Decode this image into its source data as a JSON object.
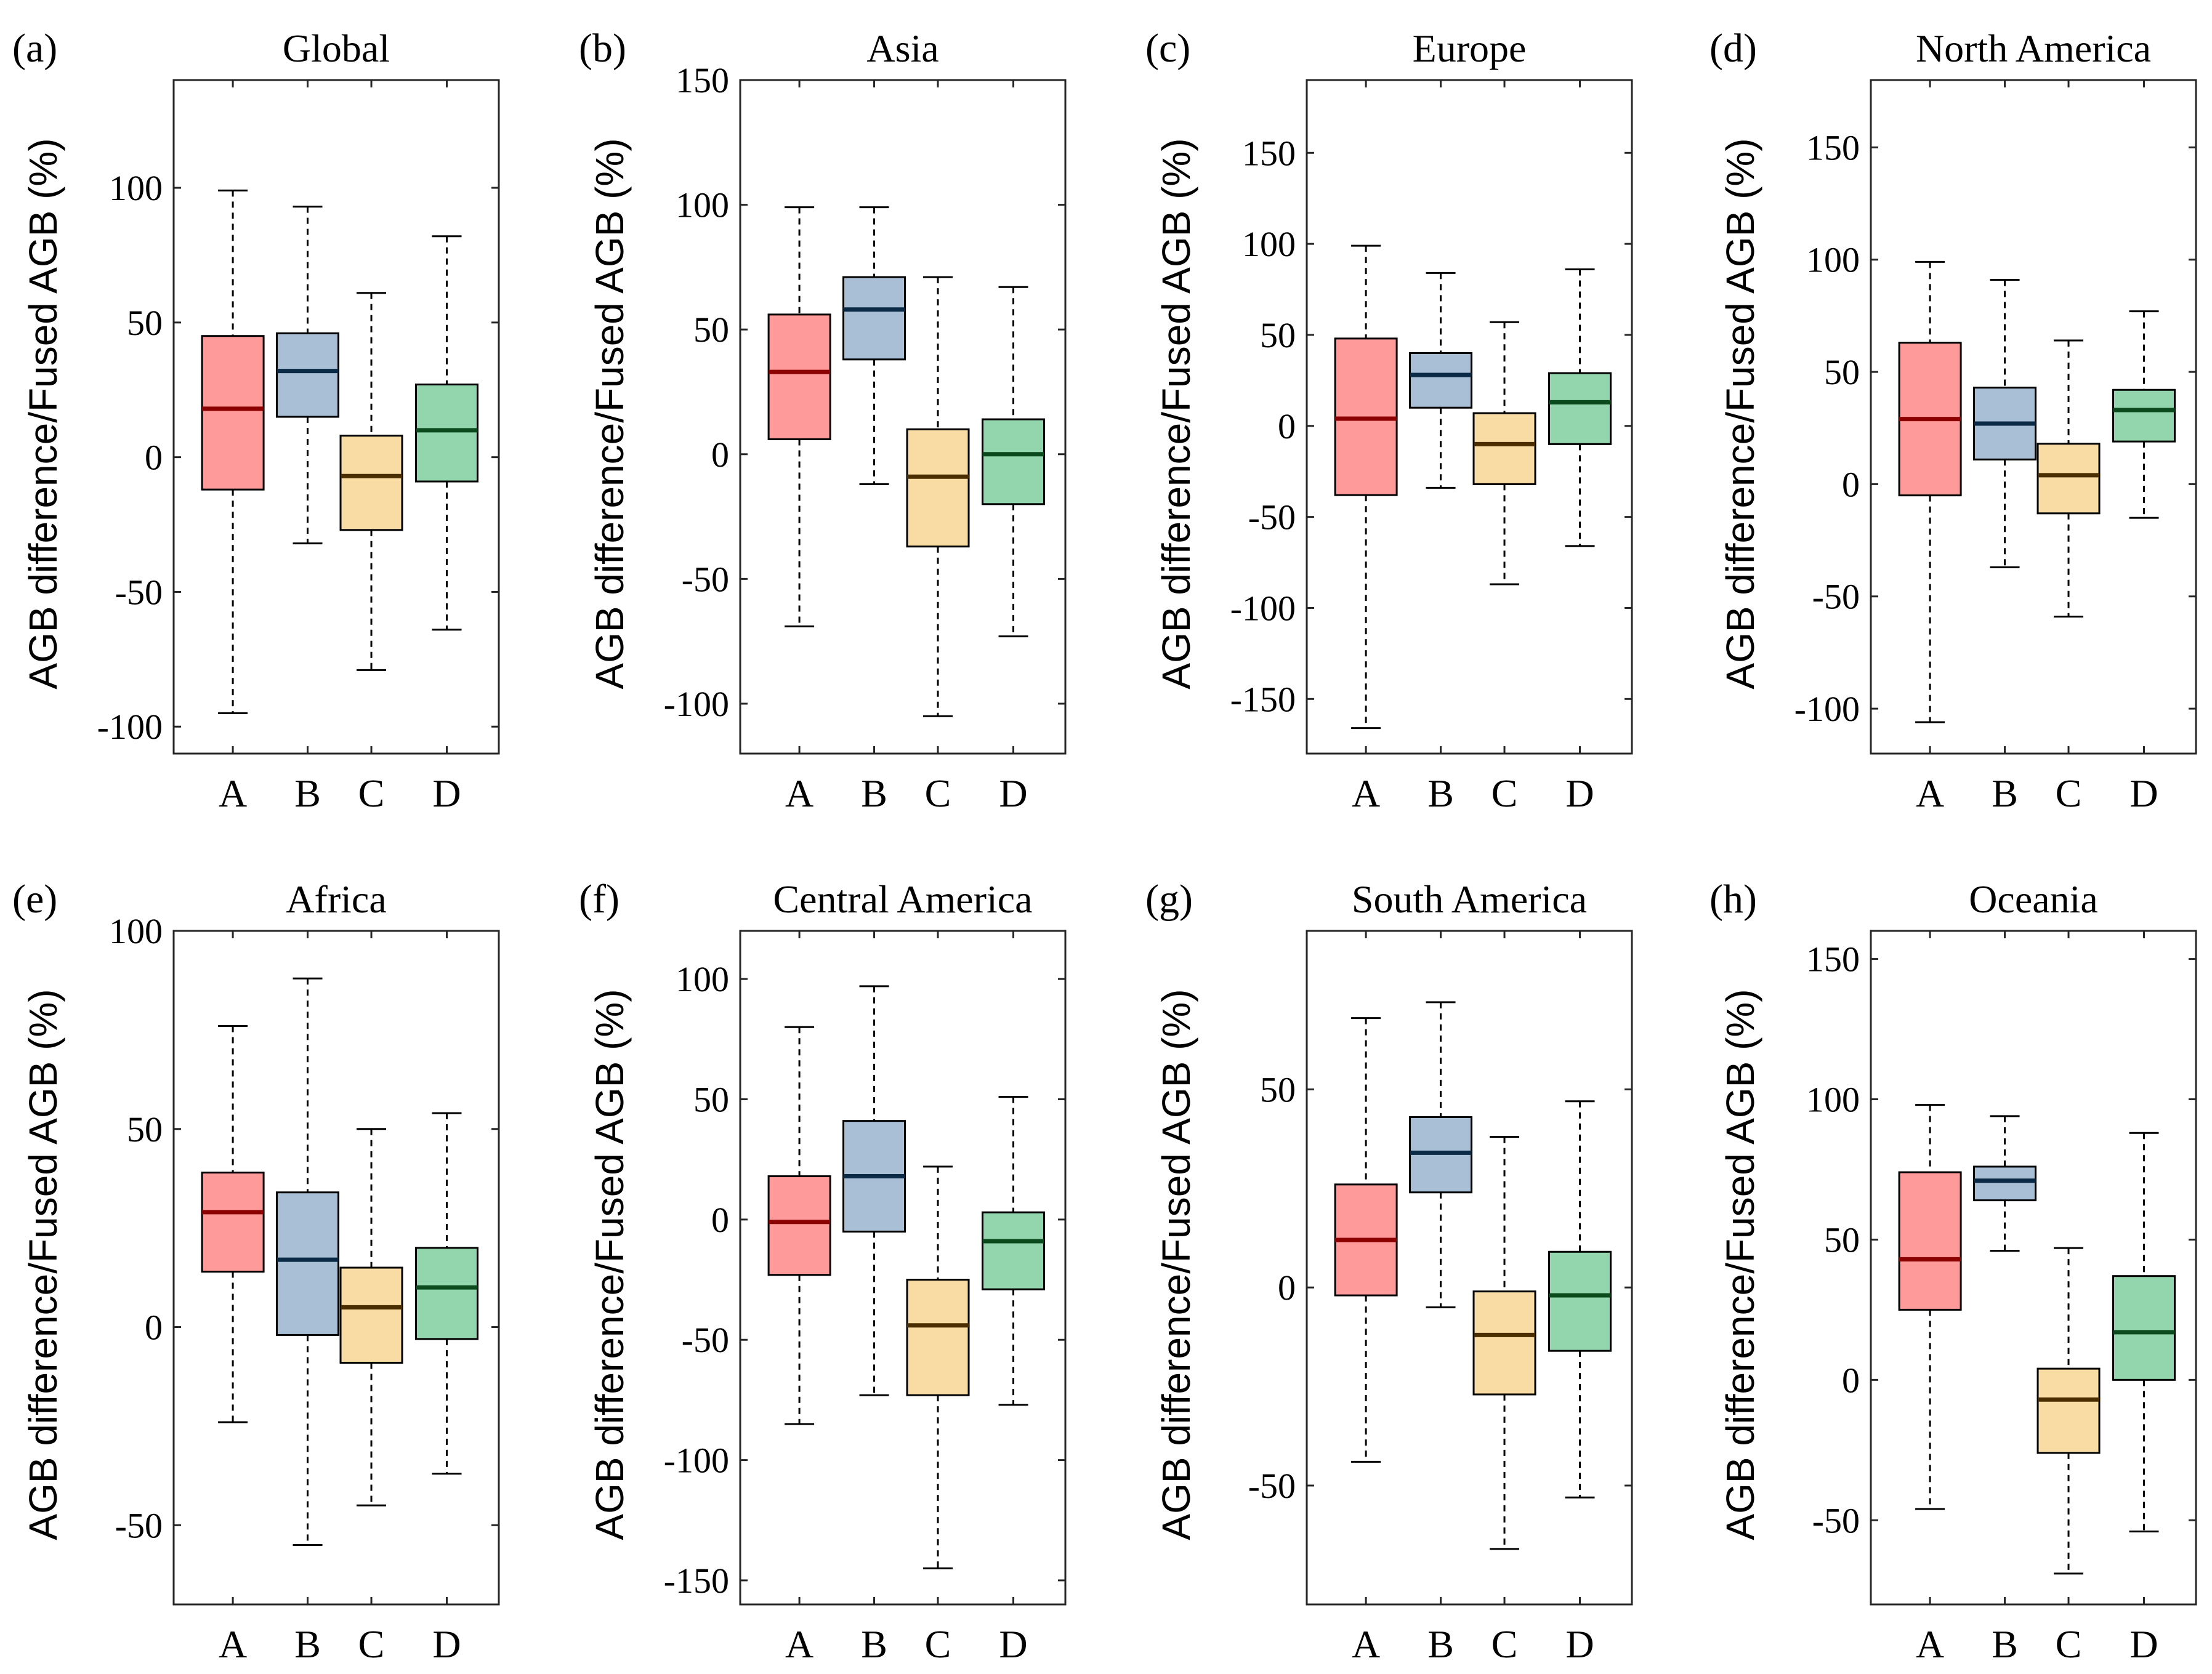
{
  "colors": {
    "A": {
      "fill": "#ff9a9a",
      "median": "#8b0000"
    },
    "B": {
      "fill": "#a9bfd6",
      "median": "#0b2a45"
    },
    "C": {
      "fill": "#f8dca3",
      "median": "#4a2e00"
    },
    "D": {
      "fill": "#93d6ad",
      "median": "#0a4a1c"
    }
  },
  "chart_data": [
    {
      "type": "box",
      "panel_label": "(a)",
      "title": "Global",
      "ylabel": "AGB difference/Fused AGB (%)",
      "ylim": [
        -110,
        140
      ],
      "yticks": [
        -100,
        -50,
        0,
        50,
        100
      ],
      "ytick_labels": [
        "-100",
        "-50",
        "0",
        "50",
        "100"
      ],
      "categories": [
        "A",
        "B",
        "C",
        "D"
      ],
      "boxes": [
        {
          "name": "A",
          "whisker_low": -95,
          "q1": -12,
          "median": 18,
          "q3": 45,
          "whisker_high": 99
        },
        {
          "name": "B",
          "whisker_low": -32,
          "q1": 15,
          "median": 32,
          "q3": 46,
          "whisker_high": 93
        },
        {
          "name": "C",
          "whisker_low": -79,
          "q1": -27,
          "median": -7,
          "q3": 8,
          "whisker_high": 61
        },
        {
          "name": "D",
          "whisker_low": -64,
          "q1": -9,
          "median": 10,
          "q3": 27,
          "whisker_high": 82
        }
      ]
    },
    {
      "type": "box",
      "panel_label": "(b)",
      "title": "Asia",
      "ylabel": "AGB difference/Fused AGB (%)",
      "ylim": [
        -120,
        150
      ],
      "yticks": [
        -100,
        -50,
        0,
        50,
        100,
        150
      ],
      "ytick_labels": [
        "-100",
        "-50",
        "0",
        "50",
        "100",
        "150"
      ],
      "categories": [
        "A",
        "B",
        "C",
        "D"
      ],
      "boxes": [
        {
          "name": "A",
          "whisker_low": -69,
          "q1": 6,
          "median": 33,
          "q3": 56,
          "whisker_high": 99
        },
        {
          "name": "B",
          "whisker_low": -12,
          "q1": 38,
          "median": 58,
          "q3": 71,
          "whisker_high": 99
        },
        {
          "name": "C",
          "whisker_low": -105,
          "q1": -37,
          "median": -9,
          "q3": 10,
          "whisker_high": 71
        },
        {
          "name": "D",
          "whisker_low": -73,
          "q1": -20,
          "median": 0,
          "q3": 14,
          "whisker_high": 67
        }
      ]
    },
    {
      "type": "box",
      "panel_label": "(c)",
      "title": "Europe",
      "ylabel": "AGB difference/Fused AGB (%)",
      "ylim": [
        -180,
        190
      ],
      "yticks": [
        -150,
        -100,
        -50,
        0,
        50,
        100,
        150
      ],
      "ytick_labels": [
        "-150",
        "-100",
        "-50",
        "0",
        "50",
        "100",
        "150"
      ],
      "categories": [
        "A",
        "B",
        "C",
        "D"
      ],
      "boxes": [
        {
          "name": "A",
          "whisker_low": -166,
          "q1": -38,
          "median": 4,
          "q3": 48,
          "whisker_high": 99
        },
        {
          "name": "B",
          "whisker_low": -34,
          "q1": 10,
          "median": 28,
          "q3": 40,
          "whisker_high": 84
        },
        {
          "name": "C",
          "whisker_low": -87,
          "q1": -32,
          "median": -10,
          "q3": 7,
          "whisker_high": 57
        },
        {
          "name": "D",
          "whisker_low": -66,
          "q1": -10,
          "median": 13,
          "q3": 29,
          "whisker_high": 86
        }
      ]
    },
    {
      "type": "box",
      "panel_label": "(d)",
      "title": "North America",
      "ylabel": "AGB difference/Fused AGB (%)",
      "ylim": [
        -120,
        180
      ],
      "yticks": [
        -100,
        -50,
        0,
        50,
        100,
        150
      ],
      "ytick_labels": [
        "-100",
        "-50",
        "0",
        "50",
        "100",
        "150"
      ],
      "categories": [
        "A",
        "B",
        "C",
        "D"
      ],
      "boxes": [
        {
          "name": "A",
          "whisker_low": -106,
          "q1": -5,
          "median": 29,
          "q3": 63,
          "whisker_high": 99
        },
        {
          "name": "B",
          "whisker_low": -37,
          "q1": 11,
          "median": 27,
          "q3": 43,
          "whisker_high": 91
        },
        {
          "name": "C",
          "whisker_low": -59,
          "q1": -13,
          "median": 4,
          "q3": 18,
          "whisker_high": 64
        },
        {
          "name": "D",
          "whisker_low": -15,
          "q1": 19,
          "median": 33,
          "q3": 42,
          "whisker_high": 77
        }
      ]
    },
    {
      "type": "box",
      "panel_label": "(e)",
      "title": "Africa",
      "ylabel": "AGB difference/Fused AGB (%)",
      "ylim": [
        -70,
        100
      ],
      "yticks": [
        -50,
        0,
        50,
        100
      ],
      "ytick_labels": [
        "-50",
        "0",
        "50",
        "100"
      ],
      "categories": [
        "A",
        "B",
        "C",
        "D"
      ],
      "boxes": [
        {
          "name": "A",
          "whisker_low": -24,
          "q1": 14,
          "median": 29,
          "q3": 39,
          "whisker_high": 76
        },
        {
          "name": "B",
          "whisker_low": -55,
          "q1": -2,
          "median": 17,
          "q3": 34,
          "whisker_high": 88
        },
        {
          "name": "C",
          "whisker_low": -45,
          "q1": -9,
          "median": 5,
          "q3": 15,
          "whisker_high": 50
        },
        {
          "name": "D",
          "whisker_low": -37,
          "q1": -3,
          "median": 10,
          "q3": 20,
          "whisker_high": 54
        }
      ]
    },
    {
      "type": "box",
      "panel_label": "(f)",
      "title": "Central America",
      "ylabel": "AGB difference/Fused AGB (%)",
      "ylim": [
        -160,
        120
      ],
      "yticks": [
        -150,
        -100,
        -50,
        0,
        50,
        100
      ],
      "ytick_labels": [
        "-150",
        "-100",
        "-50",
        "0",
        "50",
        "100"
      ],
      "categories": [
        "A",
        "B",
        "C",
        "D"
      ],
      "boxes": [
        {
          "name": "A",
          "whisker_low": -85,
          "q1": -23,
          "median": -1,
          "q3": 18,
          "whisker_high": 80
        },
        {
          "name": "B",
          "whisker_low": -73,
          "q1": -5,
          "median": 18,
          "q3": 41,
          "whisker_high": 97
        },
        {
          "name": "C",
          "whisker_low": -145,
          "q1": -73,
          "median": -44,
          "q3": -25,
          "whisker_high": 22
        },
        {
          "name": "D",
          "whisker_low": -77,
          "q1": -29,
          "median": -9,
          "q3": 3,
          "whisker_high": 51
        }
      ]
    },
    {
      "type": "box",
      "panel_label": "(g)",
      "title": "South America",
      "ylabel": "AGB difference/Fused AGB (%)",
      "ylim": [
        -80,
        90
      ],
      "yticks": [
        -50,
        0,
        50
      ],
      "ytick_labels": [
        "-50",
        "0",
        "50"
      ],
      "categories": [
        "A",
        "B",
        "C",
        "D"
      ],
      "boxes": [
        {
          "name": "A",
          "whisker_low": -44,
          "q1": -2,
          "median": 12,
          "q3": 26,
          "whisker_high": 68
        },
        {
          "name": "B",
          "whisker_low": -5,
          "q1": 24,
          "median": 34,
          "q3": 43,
          "whisker_high": 72
        },
        {
          "name": "C",
          "whisker_low": -66,
          "q1": -27,
          "median": -12,
          "q3": -1,
          "whisker_high": 38
        },
        {
          "name": "D",
          "whisker_low": -53,
          "q1": -16,
          "median": -2,
          "q3": 9,
          "whisker_high": 47
        }
      ]
    },
    {
      "type": "box",
      "panel_label": "(h)",
      "title": "Oceania",
      "ylabel": "AGB difference/Fused AGB (%)",
      "ylim": [
        -80,
        160
      ],
      "yticks": [
        -50,
        0,
        50,
        100,
        150
      ],
      "ytick_labels": [
        "-50",
        "0",
        "50",
        "100",
        "150"
      ],
      "categories": [
        "A",
        "B",
        "C",
        "D"
      ],
      "boxes": [
        {
          "name": "A",
          "whisker_low": -46,
          "q1": 25,
          "median": 43,
          "q3": 74,
          "whisker_high": 98
        },
        {
          "name": "B",
          "whisker_low": 46,
          "q1": 64,
          "median": 71,
          "q3": 76,
          "whisker_high": 94
        },
        {
          "name": "C",
          "whisker_low": -69,
          "q1": -26,
          "median": -7,
          "q3": 4,
          "whisker_high": 47
        },
        {
          "name": "D",
          "whisker_low": -54,
          "q1": 0,
          "median": 17,
          "q3": 37,
          "whisker_high": 88
        }
      ]
    }
  ]
}
